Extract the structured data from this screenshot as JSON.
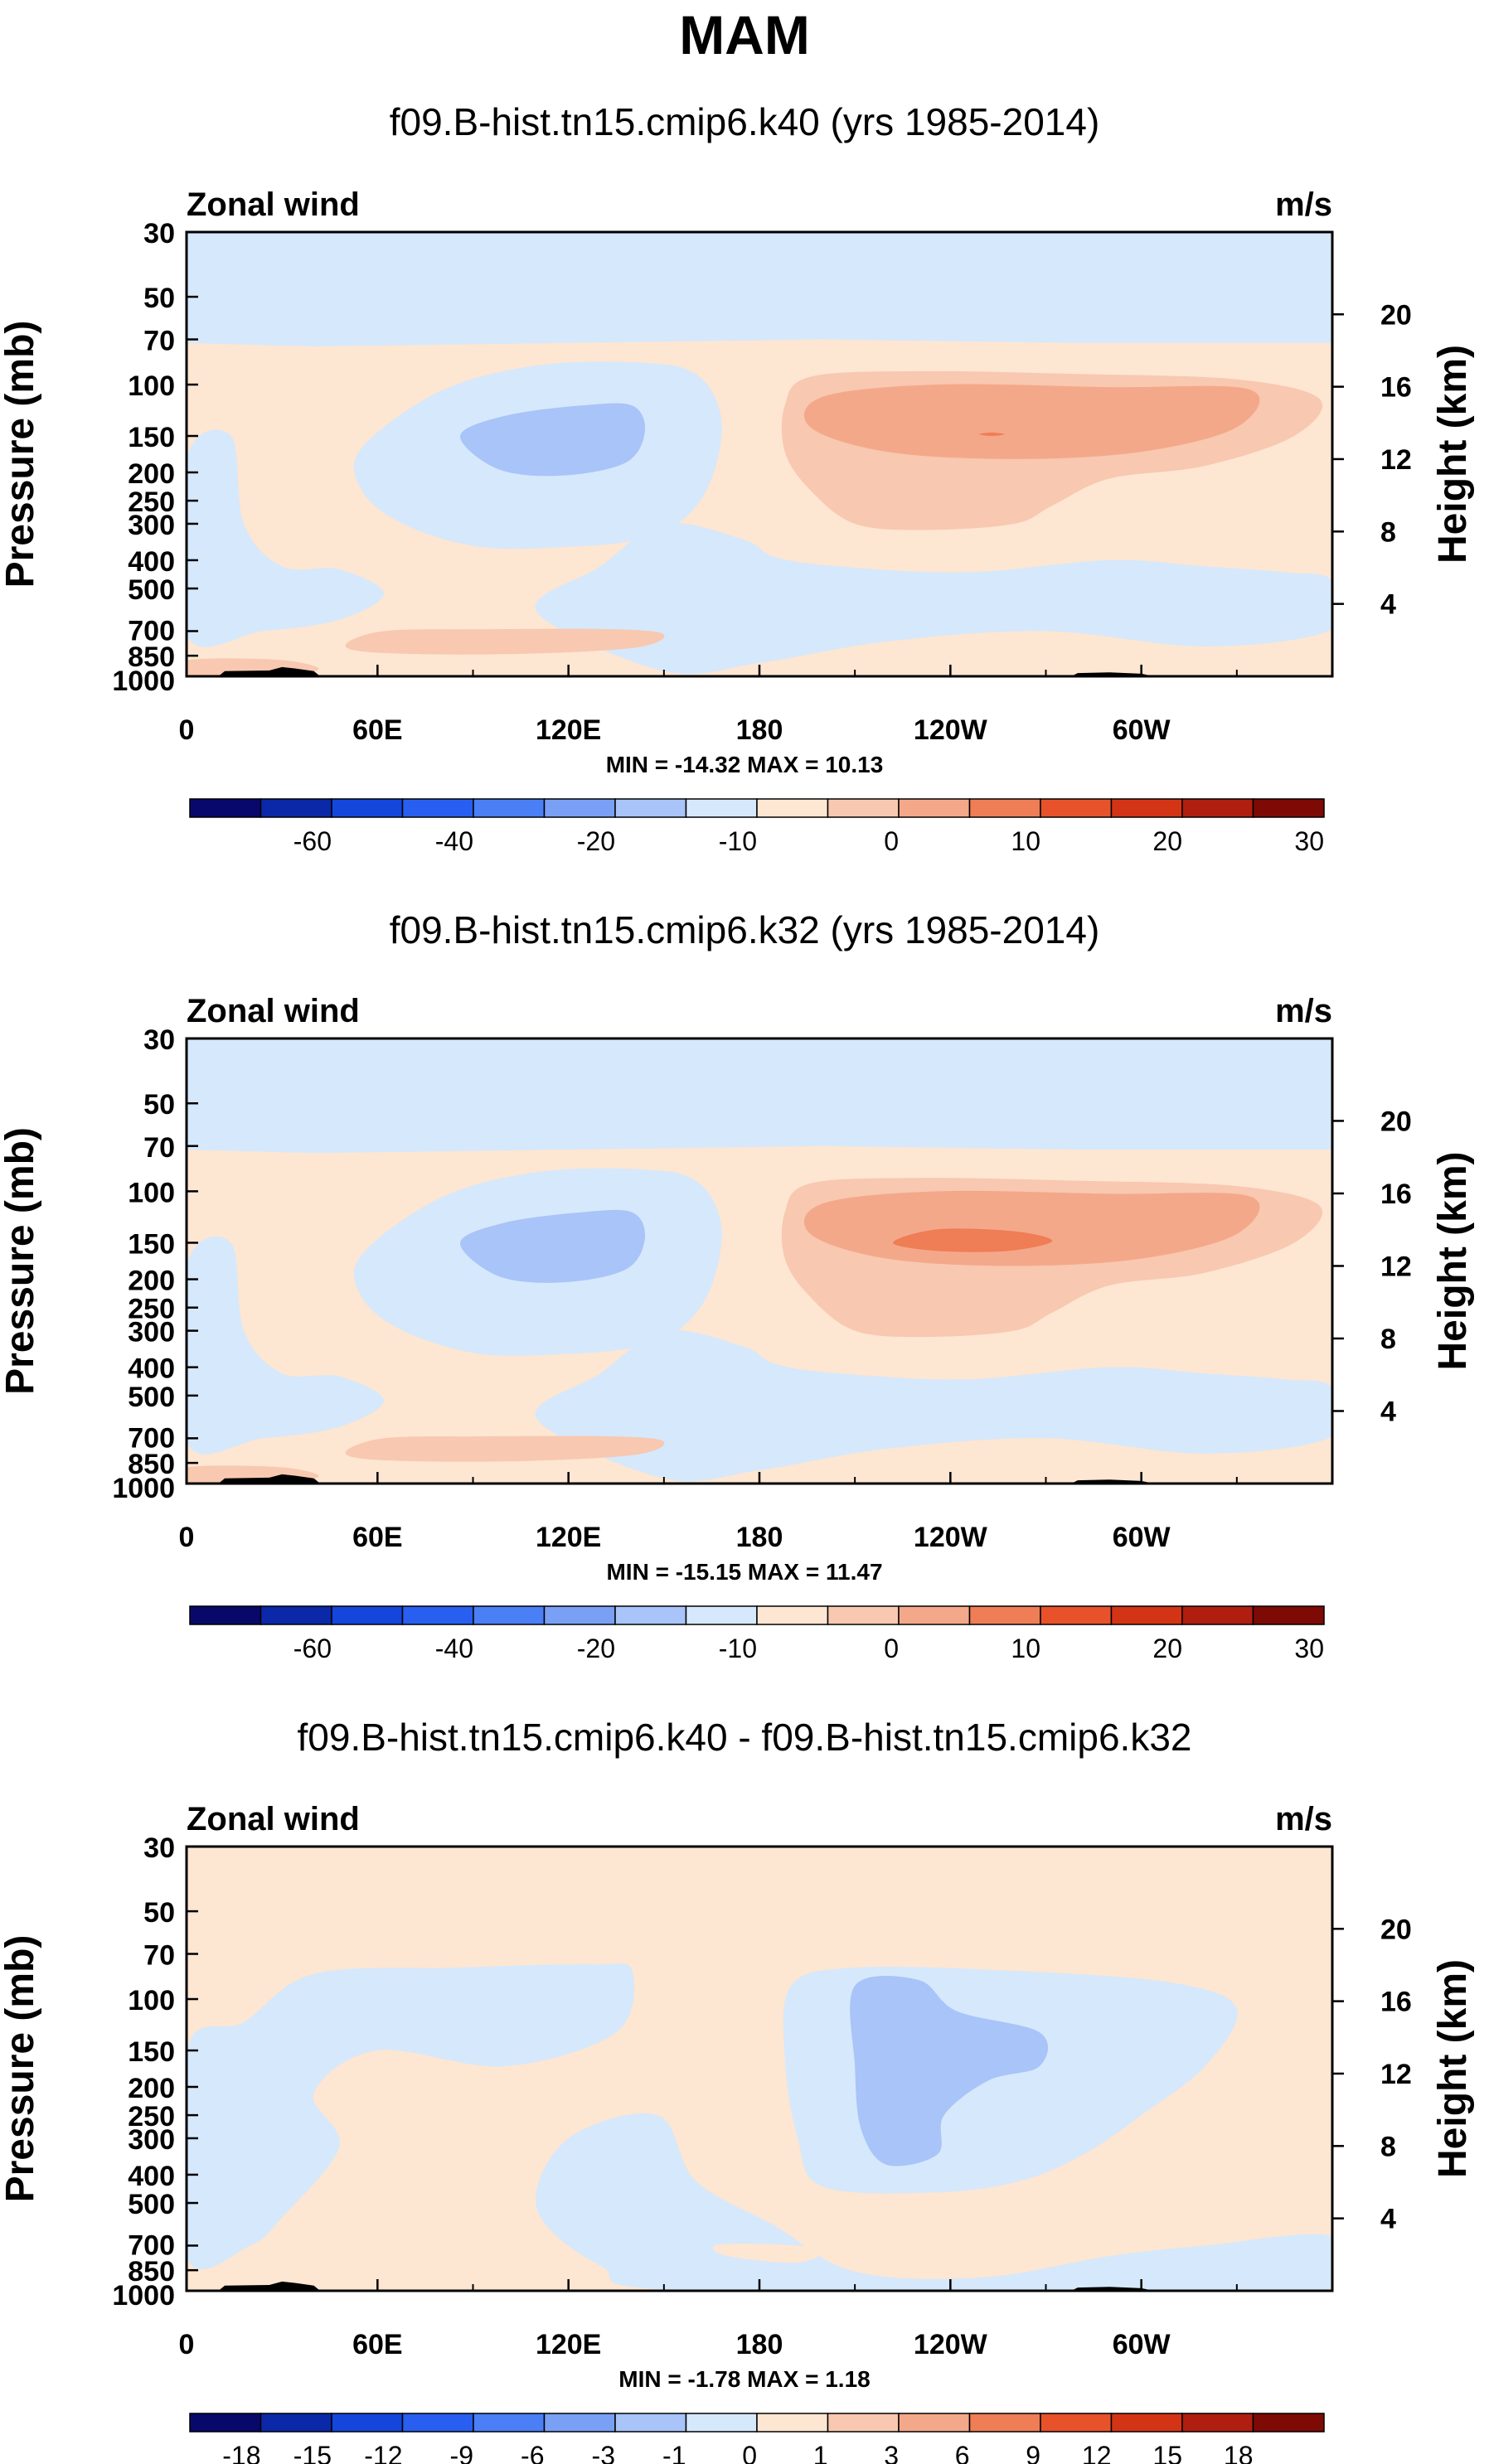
{
  "title": "MAM",
  "chart_data": [
    {
      "type": "heatmap",
      "title": "f09.B-hist.tn15.cmip6.k40 (yrs 1985-2014)",
      "left_label": "Zonal wind",
      "right_label": "m/s",
      "ylabel": "Pressure (mb)",
      "y2label": "Height (km)",
      "x_ticks": [
        "0",
        "60E",
        "120E",
        "180",
        "120W",
        "60W"
      ],
      "y_ticks": [
        "30",
        "50",
        "70",
        "100",
        "150",
        "200",
        "250",
        "300",
        "400",
        "500",
        "700",
        "850",
        "1000"
      ],
      "y2_ticks": [
        "20",
        "16",
        "12",
        "8",
        "4"
      ],
      "stats": "MIN = -14.32  MAX =  10.13",
      "colorbar_labels": [
        "-60",
        "-40",
        "-20",
        "-10",
        "0",
        "10",
        "20",
        "30"
      ]
    },
    {
      "type": "heatmap",
      "title": "f09.B-hist.tn15.cmip6.k32 (yrs 1985-2014)",
      "left_label": "Zonal wind",
      "right_label": "m/s",
      "ylabel": "Pressure (mb)",
      "y2label": "Height (km)",
      "x_ticks": [
        "0",
        "60E",
        "120E",
        "180",
        "120W",
        "60W"
      ],
      "y_ticks": [
        "30",
        "50",
        "70",
        "100",
        "150",
        "200",
        "250",
        "300",
        "400",
        "500",
        "700",
        "850",
        "1000"
      ],
      "y2_ticks": [
        "20",
        "16",
        "12",
        "8",
        "4"
      ],
      "stats": "MIN = -15.15  MAX =  11.47",
      "colorbar_labels": [
        "-60",
        "-40",
        "-20",
        "-10",
        "0",
        "10",
        "20",
        "30"
      ]
    },
    {
      "type": "heatmap",
      "title": "f09.B-hist.tn15.cmip6.k40 - f09.B-hist.tn15.cmip6.k32",
      "left_label": "Zonal wind",
      "right_label": "m/s",
      "ylabel": "Pressure (mb)",
      "y2label": "Height (km)",
      "x_ticks": [
        "0",
        "60E",
        "120E",
        "180",
        "120W",
        "60W"
      ],
      "y_ticks": [
        "30",
        "50",
        "70",
        "100",
        "150",
        "200",
        "250",
        "300",
        "400",
        "500",
        "700",
        "850",
        "1000"
      ],
      "y2_ticks": [
        "20",
        "16",
        "12",
        "8",
        "4"
      ],
      "stats": "MIN = -1.78  MAX =  1.18",
      "colorbar_labels": [
        "-18",
        "-15",
        "-12",
        "-9",
        "-6",
        "-3",
        "-1",
        "0",
        "1",
        "3",
        "6",
        "9",
        "12",
        "15",
        "18"
      ]
    }
  ],
  "colors": {
    "colorbar": [
      "#08086b",
      "#0a28a8",
      "#1446dc",
      "#285ff0",
      "#4a7ff5",
      "#7aa0f5",
      "#a8c4f8",
      "#d6e8fb",
      "#fde6d2",
      "#f8c8b0",
      "#f4a88a",
      "#ef7d55",
      "#e8522a",
      "#d43416",
      "#b01e10",
      "#7e0a06"
    ],
    "lightblue": "#d6e8fb",
    "blue2": "#a8c4f8",
    "peach": "#fde6d2",
    "salmon": "#f8c8b0",
    "orange": "#f4a88a",
    "red": "#ef7d55",
    "terrain": "#000000"
  }
}
